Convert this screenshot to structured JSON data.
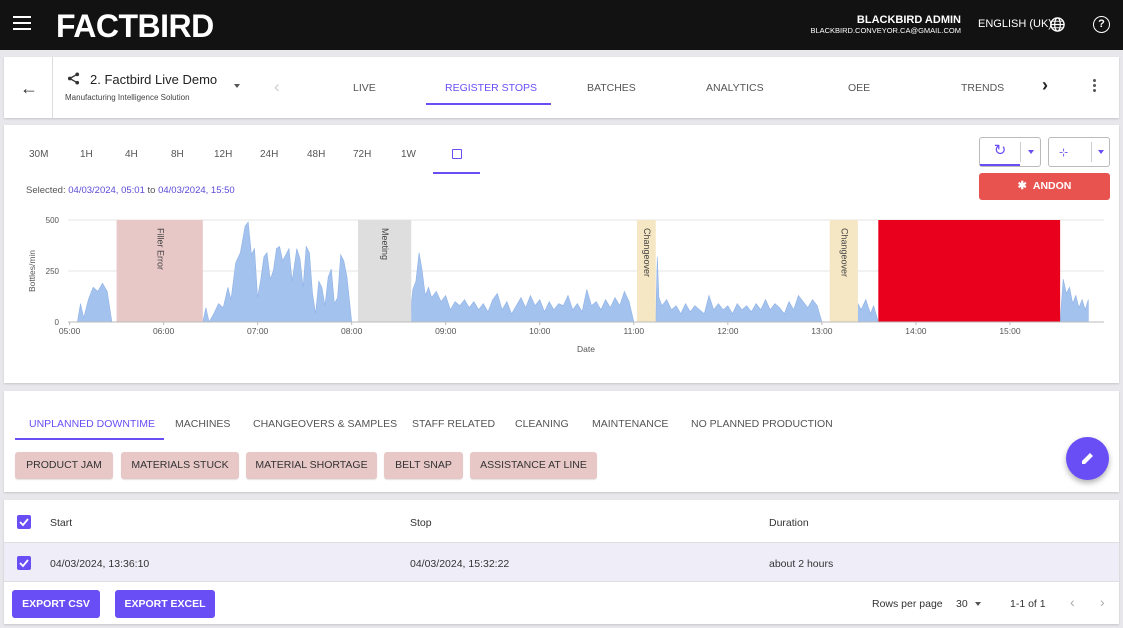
{
  "app": {
    "logo": "FACTBIRD",
    "user_name": "BLACKBIRD ADMIN",
    "user_email": "BLACKBIRD.CONVEYOR.CA@GMAIL.COM",
    "language": "ENGLISH (UK)"
  },
  "nav": {
    "product_title": "2. Factbird Live Demo",
    "product_subtitle": "Manufacturing Intelligence Solution",
    "tabs": [
      {
        "label": "LIVE"
      },
      {
        "label": "REGISTER STOPS",
        "active": true
      },
      {
        "label": "BATCHES"
      },
      {
        "label": "ANALYTICS"
      },
      {
        "label": "OEE"
      },
      {
        "label": "TRENDS"
      }
    ]
  },
  "time_ranges": [
    "30M",
    "1H",
    "4H",
    "8H",
    "12H",
    "24H",
    "48H",
    "72H",
    "1W"
  ],
  "selected": {
    "prefix": "Selected:",
    "from": "04/03/2024, 05:01",
    "joiner": "to",
    "to": "04/03/2024, 15:50"
  },
  "andon_label": "ANDON",
  "colors": {
    "accent": "#6a4ef5",
    "andon": "#e8534f",
    "series": "#a4c2ee",
    "stop_filler_error": "#e8c7c7",
    "stop_meeting": "#dedede",
    "stop_changeover": "#f5e7c4",
    "stop_selected": "#e8001d"
  },
  "chart_data": {
    "type": "area",
    "xlabel": "Date",
    "ylabel": "Bottles/min",
    "ylim": [
      0,
      500
    ],
    "yticks": [
      0,
      250,
      500
    ],
    "xticks": [
      "05:00",
      "06:00",
      "07:00",
      "08:00",
      "09:00",
      "10:00",
      "11:00",
      "12:00",
      "13:00",
      "14:00",
      "15:00"
    ],
    "series": [
      {
        "values": [
          [
            "05:05",
            0
          ],
          [
            "05:07",
            90
          ],
          [
            "05:09",
            20
          ],
          [
            "05:12",
            110
          ],
          [
            "05:15",
            170
          ],
          [
            "05:18",
            150
          ],
          [
            "05:21",
            190
          ],
          [
            "05:24",
            150
          ],
          [
            "05:27",
            0
          ],
          [
            "06:25",
            0
          ],
          [
            "06:27",
            70
          ],
          [
            "06:29",
            0
          ],
          [
            "06:32",
            40
          ],
          [
            "06:35",
            90
          ],
          [
            "06:38",
            70
          ],
          [
            "06:41",
            170
          ],
          [
            "06:43",
            110
          ],
          [
            "06:46",
            290
          ],
          [
            "06:49",
            340
          ],
          [
            "06:52",
            470
          ],
          [
            "06:54",
            490
          ],
          [
            "06:56",
            330
          ],
          [
            "06:58",
            360
          ],
          [
            "07:00",
            120
          ],
          [
            "07:02",
            210
          ],
          [
            "07:04",
            320
          ],
          [
            "07:06",
            340
          ],
          [
            "07:08",
            210
          ],
          [
            "07:10",
            250
          ],
          [
            "07:12",
            360
          ],
          [
            "07:14",
            370
          ],
          [
            "07:16",
            300
          ],
          [
            "07:18",
            330
          ],
          [
            "07:20",
            360
          ],
          [
            "07:22",
            200
          ],
          [
            "07:25",
            360
          ],
          [
            "07:27",
            310
          ],
          [
            "07:29",
            170
          ],
          [
            "07:31",
            370
          ],
          [
            "07:33",
            340
          ],
          [
            "07:35",
            140
          ],
          [
            "07:37",
            40
          ],
          [
            "07:39",
            200
          ],
          [
            "07:41",
            170
          ],
          [
            "07:43",
            80
          ],
          [
            "07:45",
            220
          ],
          [
            "07:47",
            260
          ],
          [
            "07:49",
            90
          ],
          [
            "07:51",
            120
          ],
          [
            "07:53",
            330
          ],
          [
            "07:55",
            300
          ],
          [
            "07:57",
            220
          ],
          [
            "08:00",
            0
          ],
          [
            "08:37",
            0
          ],
          [
            "08:39",
            160
          ],
          [
            "08:41",
            200
          ],
          [
            "08:43",
            340
          ],
          [
            "08:45",
            250
          ],
          [
            "08:47",
            130
          ],
          [
            "08:49",
            170
          ],
          [
            "08:51",
            120
          ],
          [
            "08:54",
            150
          ],
          [
            "08:57",
            100
          ],
          [
            "09:00",
            130
          ],
          [
            "09:03",
            60
          ],
          [
            "09:06",
            100
          ],
          [
            "09:09",
            80
          ],
          [
            "09:12",
            110
          ],
          [
            "09:15",
            70
          ],
          [
            "09:18",
            100
          ],
          [
            "09:21",
            60
          ],
          [
            "09:24",
            90
          ],
          [
            "09:27",
            50
          ],
          [
            "09:30",
            110
          ],
          [
            "09:33",
            140
          ],
          [
            "09:36",
            60
          ],
          [
            "09:39",
            100
          ],
          [
            "09:42",
            40
          ],
          [
            "09:45",
            80
          ],
          [
            "09:48",
            120
          ],
          [
            "09:51",
            70
          ],
          [
            "09:54",
            130
          ],
          [
            "09:57",
            80
          ],
          [
            "10:00",
            110
          ],
          [
            "10:03",
            50
          ],
          [
            "10:06",
            100
          ],
          [
            "10:09",
            60
          ],
          [
            "10:12",
            90
          ],
          [
            "10:15",
            80
          ],
          [
            "10:18",
            130
          ],
          [
            "10:21",
            60
          ],
          [
            "10:24",
            90
          ],
          [
            "10:27",
            50
          ],
          [
            "10:30",
            160
          ],
          [
            "10:33",
            80
          ],
          [
            "10:36",
            100
          ],
          [
            "10:39",
            60
          ],
          [
            "10:42",
            110
          ],
          [
            "10:45",
            70
          ],
          [
            "10:48",
            120
          ],
          [
            "10:51",
            80
          ],
          [
            "10:54",
            150
          ],
          [
            "10:57",
            100
          ],
          [
            "11:00",
            0
          ],
          [
            "11:14",
            0
          ],
          [
            "11:15",
            320
          ],
          [
            "11:16",
            120
          ],
          [
            "11:18",
            80
          ],
          [
            "11:21",
            110
          ],
          [
            "11:24",
            60
          ],
          [
            "11:27",
            80
          ],
          [
            "11:30",
            40
          ],
          [
            "11:33",
            90
          ],
          [
            "11:36",
            50
          ],
          [
            "11:39",
            80
          ],
          [
            "11:42",
            60
          ],
          [
            "11:45",
            40
          ],
          [
            "11:48",
            130
          ],
          [
            "11:51",
            60
          ],
          [
            "11:54",
            90
          ],
          [
            "11:57",
            60
          ],
          [
            "12:00",
            80
          ],
          [
            "12:03",
            40
          ],
          [
            "12:06",
            90
          ],
          [
            "12:09",
            60
          ],
          [
            "12:12",
            80
          ],
          [
            "12:15",
            50
          ],
          [
            "12:18",
            90
          ],
          [
            "12:21",
            60
          ],
          [
            "12:24",
            110
          ],
          [
            "12:27",
            60
          ],
          [
            "12:30",
            90
          ],
          [
            "12:33",
            70
          ],
          [
            "12:36",
            40
          ],
          [
            "12:39",
            100
          ],
          [
            "12:42",
            60
          ],
          [
            "12:45",
            130
          ],
          [
            "12:48",
            100
          ],
          [
            "12:51",
            70
          ],
          [
            "12:54",
            110
          ],
          [
            "12:57",
            80
          ],
          [
            "13:00",
            0
          ],
          [
            "13:22",
            0
          ],
          [
            "13:23",
            90
          ],
          [
            "13:25",
            60
          ],
          [
            "13:28",
            110
          ],
          [
            "13:31",
            40
          ],
          [
            "13:33",
            80
          ],
          [
            "13:36",
            0
          ],
          [
            "15:32",
            0
          ],
          [
            "15:34",
            210
          ],
          [
            "15:36",
            140
          ],
          [
            "15:38",
            170
          ],
          [
            "15:40",
            90
          ],
          [
            "15:42",
            130
          ],
          [
            "15:44",
            70
          ],
          [
            "15:46",
            110
          ],
          [
            "15:48",
            60
          ],
          [
            "15:50",
            110
          ]
        ]
      }
    ],
    "stops": [
      {
        "label": "Filler Error",
        "start": "05:30",
        "end": "06:25",
        "color": "#e8c7c7"
      },
      {
        "label": "Meeting",
        "start": "08:04",
        "end": "08:38",
        "color": "#dedede"
      },
      {
        "label": "Changeover",
        "start": "11:02",
        "end": "11:14",
        "color": "#f5e7c4"
      },
      {
        "label": "Changeover",
        "start": "13:05",
        "end": "13:23",
        "color": "#f5e7c4"
      },
      {
        "label": "",
        "start": "13:36",
        "end": "15:32",
        "color": "#e8001d"
      }
    ]
  },
  "reason_tabs": [
    {
      "label": "UNPLANNED DOWNTIME",
      "active": true
    },
    {
      "label": "MACHINES"
    },
    {
      "label": "CHANGEOVERS & SAMPLES"
    },
    {
      "label": "STAFF RELATED"
    },
    {
      "label": "CLEANING"
    },
    {
      "label": "MAINTENANCE"
    },
    {
      "label": "NO PLANNED PRODUCTION"
    }
  ],
  "reason_chips": [
    "PRODUCT JAM",
    "MATERIALS STUCK",
    "MATERIAL SHORTAGE",
    "BELT SNAP",
    "ASSISTANCE AT LINE"
  ],
  "table": {
    "columns": [
      "Start",
      "Stop",
      "Duration"
    ],
    "rows": [
      {
        "start": "04/03/2024, 13:36:10",
        "stop": "04/03/2024, 15:32:22",
        "duration": "about 2 hours"
      }
    ]
  },
  "footer": {
    "export_csv": "EXPORT CSV",
    "export_excel": "EXPORT EXCEL",
    "rows_per_page_label": "Rows per page",
    "rows_per_page_value": "30",
    "pagination": "1-1 of 1"
  }
}
